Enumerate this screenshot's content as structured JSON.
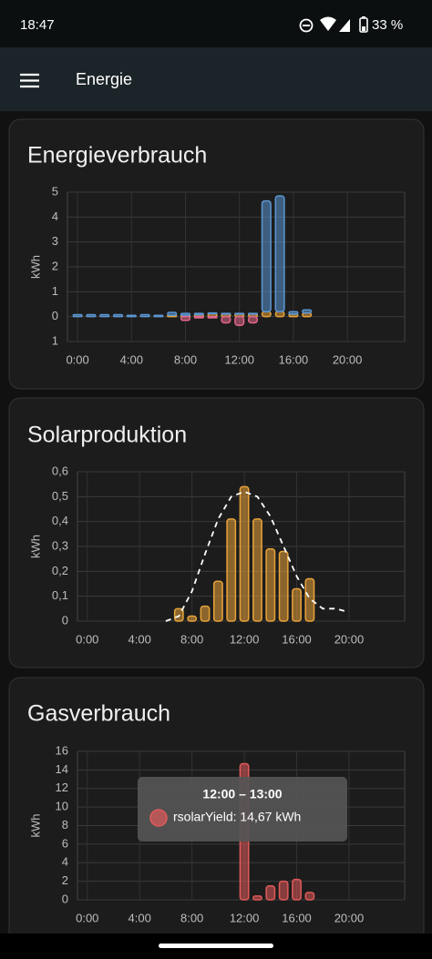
{
  "status_bar": {
    "time": "18:47",
    "battery": "33 %"
  },
  "app_bar": {
    "title": "Energie"
  },
  "chart_data": [
    {
      "type": "bar",
      "title": "Energieverbrauch",
      "y_label": "kWh",
      "x": [
        0,
        1,
        2,
        3,
        4,
        5,
        6,
        7,
        8,
        9,
        10,
        11,
        12,
        13,
        14,
        15,
        16,
        17
      ],
      "series": [
        {
          "color": "#e8a33a",
          "values": [
            null,
            null,
            null,
            null,
            null,
            null,
            null,
            0.05,
            0.05,
            0.08,
            0.12,
            0.1,
            0.1,
            0.1,
            0.2,
            0.2,
            0.1,
            0.15
          ]
        },
        {
          "color": "#5b96d2",
          "values": [
            0.08,
            0.08,
            0.08,
            0.08,
            0.05,
            0.08,
            0.05,
            0.12,
            0.08,
            0.05,
            0.03,
            0.03,
            0.03,
            0.03,
            4.45,
            4.65,
            0.1,
            0.12
          ]
        },
        {
          "color": "#e0678a",
          "values": [
            null,
            null,
            null,
            null,
            null,
            null,
            null,
            null,
            -0.15,
            -0.05,
            -0.05,
            -0.25,
            -0.35,
            -0.25,
            null,
            null,
            null,
            null
          ]
        }
      ],
      "xlim": [
        -0.75,
        24.25
      ],
      "xticks": [
        {
          "value": 0,
          "label": "0:00"
        },
        {
          "value": 4,
          "label": "4:00"
        },
        {
          "value": 8,
          "label": "8:00"
        },
        {
          "value": 12,
          "label": "12:00"
        },
        {
          "value": 16,
          "label": "16:00"
        },
        {
          "value": 20,
          "label": "20:00"
        }
      ],
      "ylim": [
        -1,
        5
      ],
      "yticks": [
        {
          "value": -1,
          "label": "1"
        },
        0,
        1,
        2,
        3,
        4,
        5
      ]
    },
    {
      "type": "bar",
      "title": "Solarproduktion",
      "y_label": "kWh",
      "x": [
        7,
        8,
        9,
        10,
        11,
        12,
        13,
        14,
        15,
        16,
        17
      ],
      "series": [
        {
          "color": "#e8a33a",
          "values": [
            0.05,
            0.02,
            0.06,
            0.16,
            0.41,
            0.54,
            0.41,
            0.29,
            0.28,
            0.13,
            0.17
          ]
        },
        {
          "type": "line",
          "dashed": true,
          "color": "#ffffff",
          "x": [
            6,
            7,
            8,
            9,
            10,
            11,
            12,
            13,
            14,
            15,
            16,
            17,
            18,
            19,
            19.7
          ],
          "values": [
            0,
            0.02,
            0.12,
            0.27,
            0.41,
            0.5,
            0.52,
            0.5,
            0.42,
            0.3,
            0.18,
            0.09,
            0.05,
            0.05,
            0.04
          ]
        }
      ],
      "xlim": [
        -0.75,
        24.25
      ],
      "xticks": [
        {
          "value": 0,
          "label": "0:00"
        },
        {
          "value": 4,
          "label": "4:00"
        },
        {
          "value": 8,
          "label": "8:00"
        },
        {
          "value": 12,
          "label": "12:00"
        },
        {
          "value": 16,
          "label": "16:00"
        },
        {
          "value": 20,
          "label": "20:00"
        }
      ],
      "ylim": [
        0,
        0.6
      ],
      "yticks": [
        0,
        {
          "value": 0.1,
          "label": "0,1"
        },
        {
          "value": 0.2,
          "label": "0,2"
        },
        {
          "value": 0.3,
          "label": "0,3"
        },
        {
          "value": 0.4,
          "label": "0,4"
        },
        {
          "value": 0.5,
          "label": "0,5"
        },
        {
          "value": 0.6,
          "label": "0,6"
        }
      ]
    },
    {
      "type": "bar",
      "title": "Gasverbrauch",
      "y_label": "kWh",
      "x": [
        12,
        13,
        14,
        15,
        16,
        17
      ],
      "series": [
        {
          "color": "#e05a5a",
          "values": [
            14.67,
            0.4,
            1.5,
            2.0,
            2.2,
            0.8
          ]
        }
      ],
      "xlim": [
        -0.75,
        24.25
      ],
      "xticks": [
        {
          "value": 0,
          "label": "0:00"
        },
        {
          "value": 4,
          "label": "4:00"
        },
        {
          "value": 8,
          "label": "8:00"
        },
        {
          "value": 12,
          "label": "12:00"
        },
        {
          "value": 16,
          "label": "16:00"
        },
        {
          "value": 20,
          "label": "20:00"
        }
      ],
      "ylim": [
        0,
        16
      ],
      "yticks": [
        0,
        2,
        4,
        6,
        8,
        10,
        12,
        14,
        16
      ],
      "tooltip": {
        "title": "12:00 – 13:00",
        "text": "rsolarYield: 14,67 kWh",
        "color": "#e05a5a"
      }
    }
  ]
}
